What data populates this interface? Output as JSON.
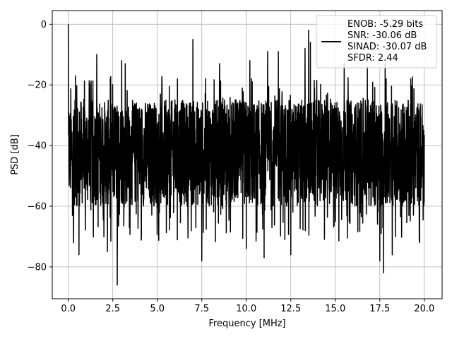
{
  "chart_data": {
    "type": "line",
    "title": "",
    "xlabel": "Frequency [MHz]",
    "ylabel": "PSD [dB]",
    "xlim": [
      -0.9,
      21.0
    ],
    "ylim": [
      -90.5,
      4.5
    ],
    "x_ticks": [
      0.0,
      2.5,
      5.0,
      7.5,
      10.0,
      12.5,
      15.0,
      17.5,
      20.0
    ],
    "x_tick_labels": [
      "0.0",
      "2.5",
      "5.0",
      "7.5",
      "10.0",
      "12.5",
      "15.0",
      "17.5",
      "20.0"
    ],
    "y_ticks": [
      0,
      -20,
      -40,
      -60,
      -80
    ],
    "y_tick_labels": [
      "0",
      "−20",
      "−40",
      "−60",
      "−80"
    ],
    "grid": true,
    "legend_position": "top-right",
    "legend_lines": [
      "ENOB: -5.29 bits",
      "SNR: -30.06 dB",
      "SINAD: -30.07 dB",
      "SFDR: 2.44"
    ],
    "line_color": "#000000",
    "series": [
      {
        "x_range": [
          0,
          20
        ],
        "noise_floor_band_db": [
          -60,
          -25
        ],
        "peaks": [
          {
            "x": 0.0,
            "y": 0.0
          },
          {
            "x": 0.4,
            "y": -17.0
          },
          {
            "x": 1.6,
            "y": -10.0
          },
          {
            "x": 3.0,
            "y": -12.0
          },
          {
            "x": 3.2,
            "y": -13.0
          },
          {
            "x": 7.0,
            "y": -5.0
          },
          {
            "x": 8.5,
            "y": -13.0
          },
          {
            "x": 10.2,
            "y": -12.0
          },
          {
            "x": 11.2,
            "y": -9.0
          },
          {
            "x": 11.8,
            "y": -9.0
          },
          {
            "x": 13.3,
            "y": -8.0
          },
          {
            "x": 13.5,
            "y": -2.0
          },
          {
            "x": 13.6,
            "y": -6.0
          },
          {
            "x": 15.5,
            "y": -13.0
          },
          {
            "x": 16.8,
            "y": -14.0
          },
          {
            "x": 17.8,
            "y": -13.0
          }
        ],
        "dips": [
          {
            "x": 0.3,
            "y": -72.0
          },
          {
            "x": 0.6,
            "y": -76.0
          },
          {
            "x": 2.2,
            "y": -75.0
          },
          {
            "x": 2.75,
            "y": -86.0
          },
          {
            "x": 7.5,
            "y": -78.0
          },
          {
            "x": 10.0,
            "y": -74.0
          },
          {
            "x": 11.0,
            "y": -77.0
          },
          {
            "x": 12.5,
            "y": -76.0
          },
          {
            "x": 17.5,
            "y": -78.0
          },
          {
            "x": 17.7,
            "y": -82.0
          },
          {
            "x": 18.2,
            "y": -76.0
          }
        ]
      }
    ]
  }
}
